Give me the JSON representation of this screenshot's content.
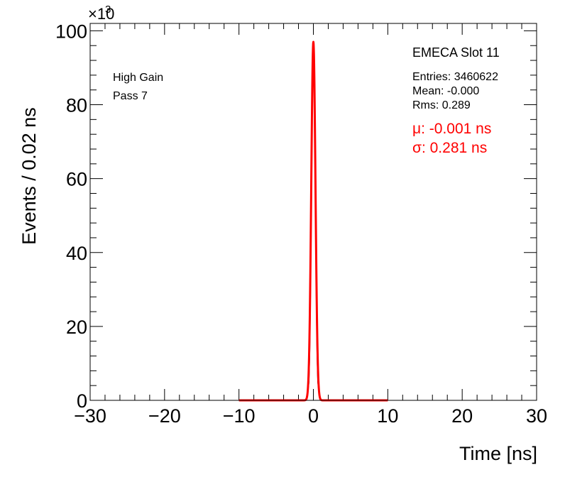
{
  "chart_data": {
    "type": "line",
    "xlabel": "Time [ns]",
    "ylabel": "Events / 0.02 ns",
    "y_multiplier": "×10",
    "y_multiplier_exp": "3",
    "xlim": [
      -30,
      30
    ],
    "ylim": [
      0,
      102
    ],
    "x_ticks": [
      -30,
      -20,
      -10,
      0,
      10,
      20,
      30
    ],
    "x_tick_labels": [
      "−30",
      "−20",
      "−10",
      "0",
      "10",
      "20",
      "30"
    ],
    "y_ticks": [
      0,
      20,
      40,
      60,
      80,
      100
    ],
    "y_tick_labels": [
      "0",
      "20",
      "40",
      "60",
      "80",
      "100"
    ],
    "grid": false,
    "legend": "none",
    "annotations": {
      "left": [
        "High Gain",
        "Pass 7"
      ],
      "stats_title": "EMECA Slot 11",
      "stats": [
        "Entries: 3460622",
        "Mean: -0.000",
        "Rms: 0.289"
      ],
      "fit": [
        "μ: -0.001 ns",
        "σ: 0.281 ns"
      ]
    },
    "histogram": {
      "x": [
        -1.0,
        -0.8,
        -0.6,
        -0.5,
        -0.4,
        -0.3,
        -0.2,
        -0.15,
        -0.1,
        -0.05,
        0.0,
        0.05,
        0.1,
        0.15,
        0.2,
        0.3,
        0.4,
        0.5,
        0.6,
        0.8,
        1.0
      ],
      "y": [
        0.2,
        1.5,
        5,
        13,
        28,
        53,
        75,
        84,
        91,
        96,
        97,
        95,
        90,
        83,
        74,
        52,
        28,
        13,
        5,
        1.5,
        0.2
      ],
      "color": "#000000"
    },
    "fit_curve": {
      "mu": -0.001,
      "sigma": 0.281,
      "amplitude": 97,
      "range": [
        -10,
        10
      ],
      "color": "#ff0000"
    }
  }
}
